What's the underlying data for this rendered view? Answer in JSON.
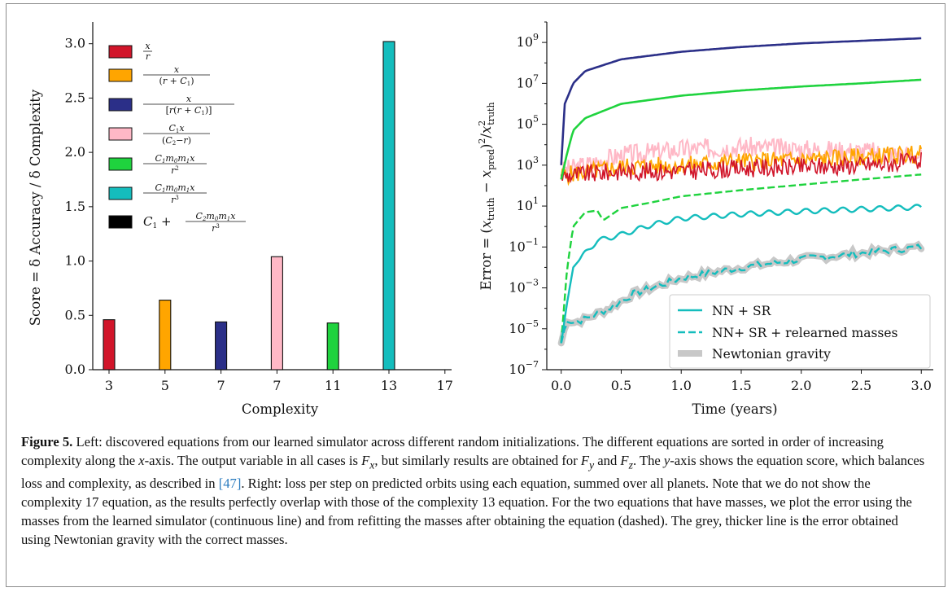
{
  "chart_data": [
    {
      "type": "bar",
      "xlabel": "Complexity",
      "ylabel": "Score = δ Accuracy / δ Complexity",
      "ylim": [
        0,
        3.2
      ],
      "yticks": [
        "0.0",
        "0.5",
        "1.0",
        "1.5",
        "2.0",
        "2.5",
        "3.0"
      ],
      "categories": [
        "3",
        "5",
        "7",
        "7",
        "11",
        "13",
        "17"
      ],
      "values": [
        0.46,
        0.64,
        0.44,
        1.04,
        0.43,
        3.02,
        0.0
      ],
      "colors": [
        "#d1152a",
        "#ffa500",
        "#2b2f88",
        "#ffb8c6",
        "#1fd33e",
        "#14bdbd",
        "#000000"
      ],
      "legend_placement": "top-left",
      "legend": [
        "x/r",
        "x/(r+C1)",
        "x/[r(r+C1)]",
        "C1 x/(C2−r)",
        "C1 m0 m1 x/r^2",
        "C1 m0 m1 x/r^3",
        "C1 + C2 m0 m1 x/r^3"
      ]
    },
    {
      "type": "line",
      "xlabel": "Time (years)",
      "ylabel": "Error = (x_truth − x_pred)^2 / x_truth^2",
      "yscale": "log",
      "xlim": [
        -0.12,
        3.1
      ],
      "ylim": [
        1e-07,
        10000000000.0
      ],
      "xticks": [
        "0.0",
        "0.5",
        "1.0",
        "1.5",
        "2.0",
        "2.5",
        "3.0"
      ],
      "legend_placement": "lower-right",
      "legend": [
        "NN + SR",
        "NN+ SR + relearned masses",
        "Newtonian gravity"
      ],
      "series": [
        {
          "equation": "C1 m0 m1 x/r^3",
          "line": "solid",
          "color": "#14bdbd",
          "x": [
            0,
            0.05,
            0.1,
            0.2,
            0.3,
            0.5,
            0.75,
            1.0,
            1.5,
            2.0,
            2.5,
            3.0
          ],
          "y": [
            2e-06,
            0.0002,
            0.01,
            0.05,
            0.2,
            0.4,
            1.2,
            2.5,
            4,
            5.5,
            7,
            9
          ]
        },
        {
          "equation": "C1 m0 m1 x/r^3",
          "line": "dashed",
          "color": "#14bdbd",
          "x": [
            0,
            0.05,
            0.1,
            0.2,
            0.4,
            0.6,
            1.0,
            1.5,
            2.0,
            2.5,
            3.0
          ],
          "y": [
            2e-06,
            3e-05,
            2e-05,
            3e-05,
            0.0001,
            0.0005,
            0.003,
            0.01,
            0.025,
            0.05,
            0.1
          ]
        },
        {
          "equation": "C1 m0 m1 x/r^2",
          "line": "solid",
          "color": "#1fd33e",
          "x": [
            0,
            0.05,
            0.1,
            0.2,
            0.5,
            1.0,
            1.5,
            2.0,
            2.5,
            3.0
          ],
          "y": [
            200,
            4000,
            50000,
            200000,
            1000000,
            2500000,
            4500000,
            7000000,
            10000000,
            15000000
          ]
        },
        {
          "equation": "C1 m0 m1 x/r^2",
          "line": "dashed",
          "color": "#1fd33e",
          "x": [
            0,
            0.05,
            0.1,
            0.2,
            0.3,
            0.35,
            0.5,
            0.75,
            1.0,
            1.5,
            2.0,
            2.5,
            3.0
          ],
          "y": [
            2e-06,
            0.01,
            1,
            5,
            6,
            2,
            8,
            15,
            30,
            60,
            110,
            200,
            350
          ]
        },
        {
          "equation": "x/r",
          "line": "solid",
          "color": "#d1152a",
          "x": [
            0,
            0.5,
            1.0,
            1.5,
            2.0,
            2.5,
            3.0
          ],
          "y": [
            300,
            500,
            500,
            700,
            800,
            1000,
            1500
          ]
        },
        {
          "equation": "x/(r+C1)",
          "line": "solid",
          "color": "#ffa500",
          "x": [
            0,
            0.5,
            1.0,
            1.5,
            2.0,
            2.5,
            3.0
          ],
          "y": [
            300,
            800,
            1000,
            1500,
            1800,
            2500,
            3500
          ]
        },
        {
          "equation": "C1 x/(C2−r)",
          "line": "solid",
          "color": "#ffb8c6",
          "x": [
            0,
            0.5,
            1.0,
            1.5,
            2.0,
            2.5,
            3.0
          ],
          "y": [
            500,
            3000,
            6000,
            8000,
            6000,
            5000,
            3000
          ]
        },
        {
          "equation": "x/[r(r+C1)]",
          "line": "solid",
          "color": "#2b2f88",
          "x": [
            0,
            0.03,
            0.1,
            0.2,
            0.5,
            1.0,
            1.5,
            2.0,
            2.5,
            3.0
          ],
          "y": [
            1000,
            1000000,
            10000000,
            40000000,
            150000000,
            350000000,
            600000000,
            900000000,
            1200000000,
            1600000000
          ]
        }
      ]
    }
  ],
  "caption": {
    "label": "Figure 5.",
    "s1": " Left: discovered equations from our learned simulator across different random initializations. The different equations are sorted in order of increasing complexity along the ",
    "x": "x",
    "s2": "-axis. The output variable in all cases is ",
    "fx_base": "F",
    "fx_sub": "x",
    "s3": ", but similarly results are obtained for ",
    "fy_base": "F",
    "fy_sub": "y",
    "s4": " and ",
    "fz_base": "F",
    "fz_sub": "z",
    "s5": ". The ",
    "y": "y",
    "s6": "-axis shows the equation score, which balances loss and complexity, as described in ",
    "ref": "[47]",
    "s7": ". Right: loss per step on predicted orbits using each equation, summed over all planets. Note that we do not show the complexity 17 equation, as the results perfectly overlap with those of the complexity 13 equation. For the two equations that have masses, we plot the error using the masses from the learned simulator (continuous line) and from refitting the masses after obtaining the equation (dashed). The grey, thicker line is the error obtained using Newtonian gravity with the correct masses."
  }
}
